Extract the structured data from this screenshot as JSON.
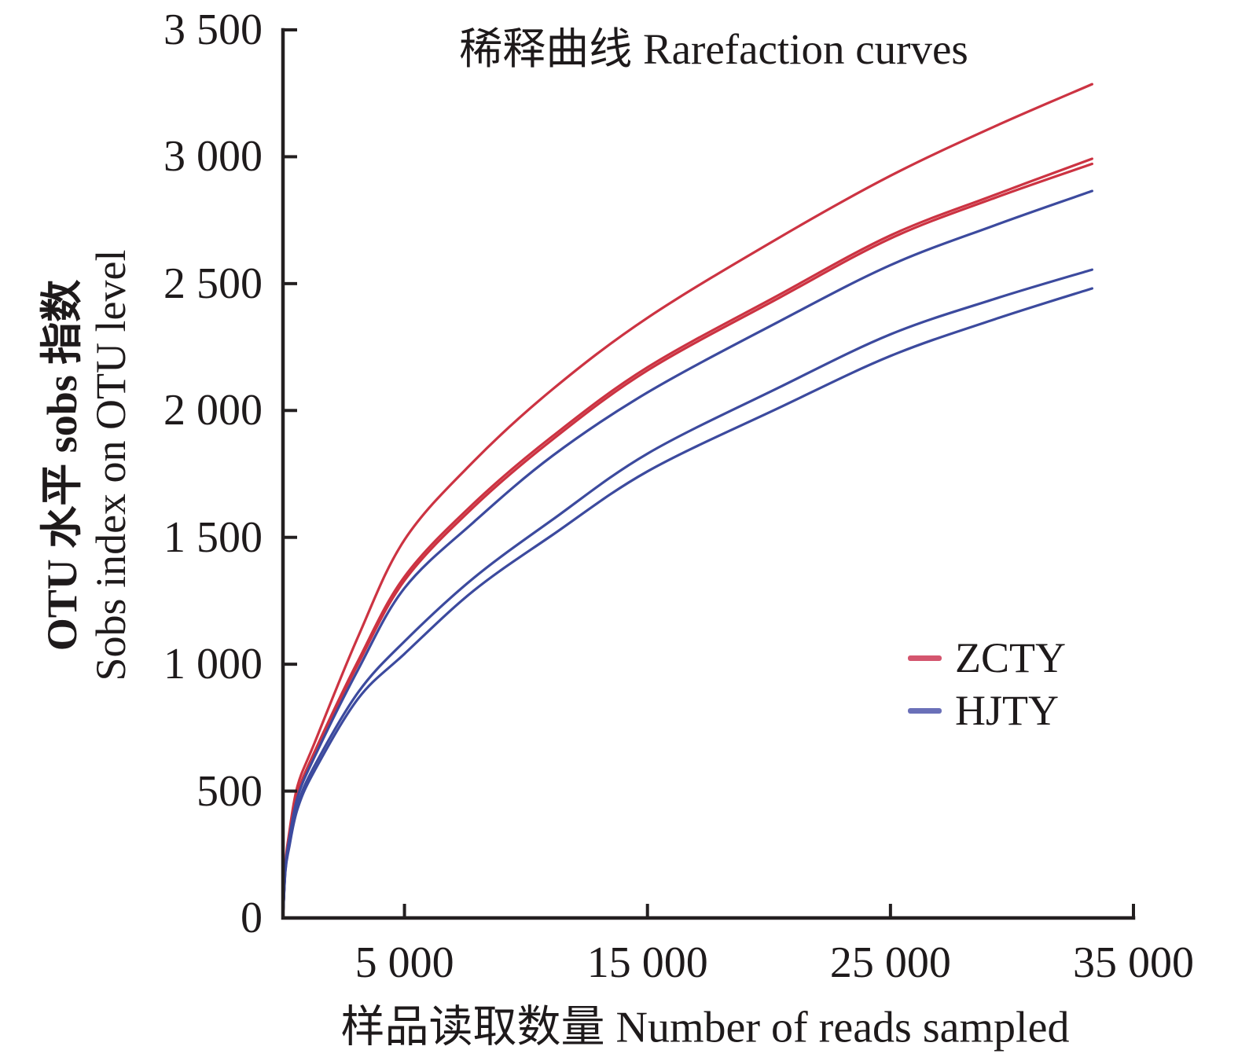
{
  "title": "稀释曲线 Rarefaction curves",
  "axes": {
    "x": {
      "label": "样品读取数量 Number of reads sampled",
      "range": [
        0,
        35000
      ],
      "ticks": [
        {
          "value": 5000,
          "label": "5 000"
        },
        {
          "value": 15000,
          "label": "15 000"
        },
        {
          "value": 25000,
          "label": "25 000"
        },
        {
          "value": 35000,
          "label": "35 000"
        }
      ]
    },
    "y": {
      "label_zh": "OTU 水平 sobs 指数",
      "label_en": "Sobs index on OTU level",
      "range": [
        0,
        3500
      ],
      "ticks": [
        {
          "value": 0,
          "label": "0"
        },
        {
          "value": 500,
          "label": "500"
        },
        {
          "value": 1000,
          "label": "1 000"
        },
        {
          "value": 1500,
          "label": "1 500"
        },
        {
          "value": 2000,
          "label": "2 000"
        },
        {
          "value": 2500,
          "label": "2 500"
        },
        {
          "value": 3000,
          "label": "3 000"
        },
        {
          "value": 3500,
          "label": "3 500"
        }
      ]
    }
  },
  "legend": [
    {
      "name": "ZCTY",
      "swatch_color": "#d4556e"
    },
    {
      "name": "HJTY",
      "swatch_color": "#6a70b8"
    }
  ],
  "colors": {
    "zcty_curve": "#cc3342",
    "hjty_curve": "#3c4a9e",
    "axis": "#231f20"
  },
  "chart_data": {
    "type": "line",
    "title": "稀释曲线 Rarefaction curves",
    "xlabel": "样品读取数量 Number of reads sampled",
    "ylabel": "OTU 水平 sobs 指数 Sobs index on OTU level",
    "xlim": [
      0,
      35000
    ],
    "ylim": [
      0,
      3500
    ],
    "grid": false,
    "legend_position": "right-middle",
    "x": [
      0,
      100,
      250,
      600,
      1300,
      3100,
      5000,
      7850,
      11100,
      15000,
      20400,
      25000,
      29300,
      33300
    ],
    "series": [
      {
        "name": "ZCTY-1",
        "group": "ZCTY",
        "color": "#cc3342",
        "values": [
          0,
          210,
          330,
          520,
          690,
          1110,
          1490,
          1800,
          2084,
          2365,
          2680,
          2925,
          3120,
          3286
        ]
      },
      {
        "name": "ZCTY-2",
        "group": "ZCTY",
        "color": "#cc3342",
        "values": [
          0,
          205,
          315,
          490,
          655,
          1015,
          1345,
          1634,
          1899,
          2170,
          2455,
          2690,
          2850,
          2992
        ]
      },
      {
        "name": "ZCTY-3",
        "group": "ZCTY",
        "color": "#cc3342",
        "values": [
          0,
          202,
          310,
          485,
          650,
          1003,
          1330,
          1620,
          1886,
          2158,
          2443,
          2678,
          2838,
          2972
        ]
      },
      {
        "name": "HJTY-1",
        "group": "HJTY",
        "color": "#3c4a9e",
        "values": [
          0,
          200,
          305,
          475,
          635,
          980,
          1300,
          1560,
          1822,
          2071,
          2350,
          2573,
          2730,
          2865
        ]
      },
      {
        "name": "HJTY-2",
        "group": "HJTY",
        "color": "#3c4a9e",
        "values": [
          0,
          190,
          285,
          445,
          600,
          890,
          1090,
          1340,
          1570,
          1830,
          2090,
          2300,
          2440,
          2555
        ]
      },
      {
        "name": "HJTY-3",
        "group": "HJTY",
        "color": "#3c4a9e",
        "values": [
          0,
          185,
          275,
          430,
          580,
          865,
          1041,
          1290,
          1510,
          1760,
          2010,
          2215,
          2360,
          2481
        ]
      }
    ]
  }
}
